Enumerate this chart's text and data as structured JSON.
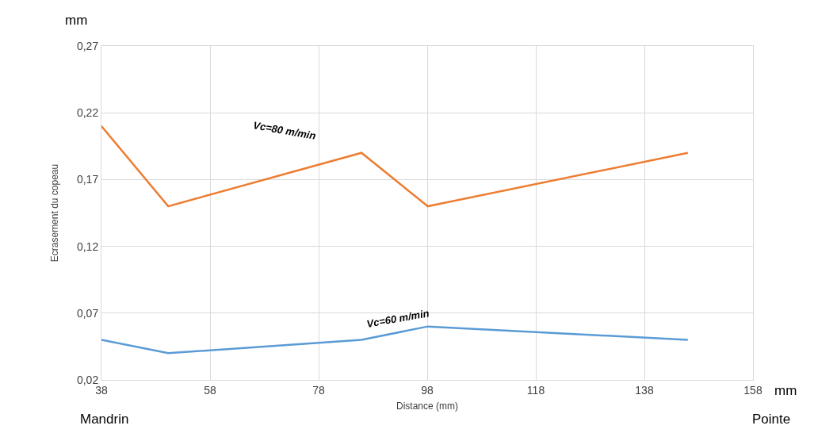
{
  "chart_data": {
    "type": "line",
    "xlabel": "Distance (mm)",
    "ylabel": "Ecrasement du copeau",
    "x": [
      38,
      50.3,
      85.9,
      98.1,
      146
    ],
    "series": [
      {
        "name": "Vc=80 m/min",
        "color": "#ed7d31",
        "values": [
          0.21,
          0.15,
          0.19,
          0.15,
          0.19
        ]
      },
      {
        "name": "Vc=60 m/min",
        "color": "#5b9bd5",
        "values": [
          0.05,
          0.04,
          0.05,
          0.06,
          0.05
        ]
      }
    ],
    "xlim": [
      38,
      158
    ],
    "xticks": [
      38,
      58,
      78,
      98,
      118,
      138,
      158
    ],
    "ylim": [
      0.02,
      0.27
    ],
    "yticks": [
      {
        "value": 0.02,
        "label": "0,02"
      },
      {
        "value": 0.07,
        "label": "0,07"
      },
      {
        "value": 0.12,
        "label": "0,12"
      },
      {
        "value": 0.17,
        "label": "0,17"
      },
      {
        "value": 0.22,
        "label": "0,22"
      },
      {
        "value": 0.27,
        "label": "0,27"
      }
    ],
    "grid": true,
    "legend": false,
    "marker": "none",
    "line_style": "solid",
    "annotations": [
      "mm",
      "mm",
      "Mandrin",
      "Pointe"
    ]
  }
}
